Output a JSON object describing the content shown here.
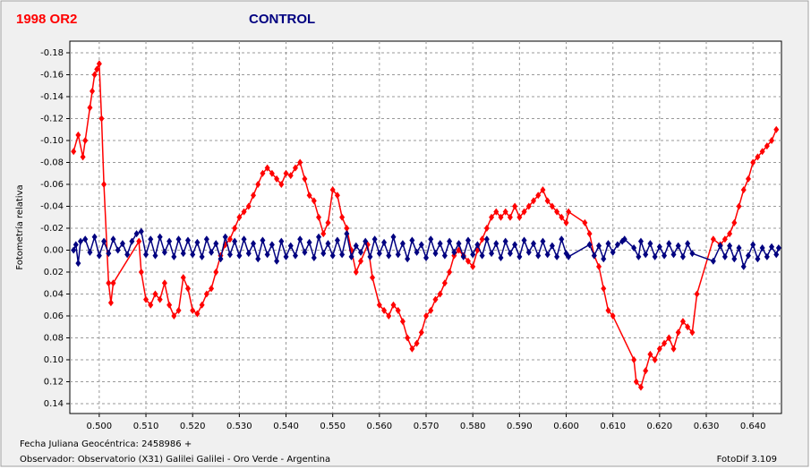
{
  "chart_data": {
    "type": "line",
    "y_label": "Fotometría relativa",
    "footer_left": [
      "Fecha Juliana Geocéntrica: 2458986 +",
      "Observador: Observatorio (X31) Galilei Galilei - Oro Verde - Argentina"
    ],
    "footer_right": "FotoDif 3.109",
    "invert_y": true,
    "grid": true,
    "xlim": [
      0.4937,
      0.6461
    ],
    "ylim": [
      -0.1906,
      0.149
    ],
    "xticks": [
      {
        "value": 0.5,
        "label": "0.500"
      },
      {
        "value": 0.51,
        "label": "0.510"
      },
      {
        "value": 0.52,
        "label": "0.520"
      },
      {
        "value": 0.53,
        "label": "0.530"
      },
      {
        "value": 0.54,
        "label": "0.540"
      },
      {
        "value": 0.55,
        "label": "0.550"
      },
      {
        "value": 0.56,
        "label": "0.560"
      },
      {
        "value": 0.57,
        "label": "0.570"
      },
      {
        "value": 0.58,
        "label": "0.580"
      },
      {
        "value": 0.59,
        "label": "0.590"
      },
      {
        "value": 0.6,
        "label": "0.600"
      },
      {
        "value": 0.61,
        "label": "0.610"
      },
      {
        "value": 0.62,
        "label": "0.620"
      },
      {
        "value": 0.63,
        "label": "0.630"
      },
      {
        "value": 0.64,
        "label": "0.640"
      }
    ],
    "yticks": [
      -0.18,
      -0.16,
      -0.14,
      -0.12,
      {
        "value": -0.1,
        "label": "-0.10"
      },
      -0.08,
      -0.06,
      -0.04,
      -0.02,
      {
        "value": 0,
        "label": "0.00"
      },
      0.02,
      0.04,
      0.06,
      0.08,
      {
        "value": 0.1,
        "label": "0.10"
      },
      0.12,
      0.14
    ],
    "series": [
      {
        "name": "1998 OR2",
        "color": "#ff0000",
        "x": [
          0.4945,
          0.4955,
          0.4965,
          0.497,
          0.498,
          0.4985,
          0.499,
          0.4995,
          0.5,
          0.5005,
          0.501,
          0.502,
          0.5025,
          0.503,
          0.5085,
          0.509,
          0.51,
          0.511,
          0.512,
          0.513,
          0.514,
          0.515,
          0.516,
          0.517,
          0.518,
          0.519,
          0.52,
          0.521,
          0.522,
          0.523,
          0.524,
          0.525,
          0.526,
          0.527,
          0.528,
          0.529,
          0.53,
          0.531,
          0.532,
          0.533,
          0.534,
          0.535,
          0.536,
          0.537,
          0.538,
          0.539,
          0.54,
          0.541,
          0.542,
          0.543,
          0.544,
          0.545,
          0.546,
          0.547,
          0.548,
          0.549,
          0.55,
          0.551,
          0.552,
          0.553,
          0.554,
          0.555,
          0.556,
          0.5575,
          0.5585,
          0.56,
          0.561,
          0.562,
          0.563,
          0.564,
          0.565,
          0.566,
          0.567,
          0.568,
          0.569,
          0.57,
          0.571,
          0.572,
          0.573,
          0.574,
          0.575,
          0.576,
          0.577,
          0.578,
          0.579,
          0.58,
          0.581,
          0.582,
          0.583,
          0.584,
          0.585,
          0.586,
          0.587,
          0.588,
          0.589,
          0.59,
          0.591,
          0.592,
          0.593,
          0.594,
          0.595,
          0.596,
          0.597,
          0.598,
          0.599,
          0.6,
          0.6005,
          0.604,
          0.605,
          0.606,
          0.607,
          0.608,
          0.609,
          0.61,
          0.6145,
          0.615,
          0.616,
          0.617,
          0.618,
          0.619,
          0.62,
          0.621,
          0.622,
          0.623,
          0.624,
          0.625,
          0.626,
          0.627,
          0.628,
          0.6315,
          0.633,
          0.634,
          0.635,
          0.636,
          0.637,
          0.638,
          0.639,
          0.64,
          0.641,
          0.642,
          0.643,
          0.644,
          0.645
        ],
        "values": [
          -0.09,
          -0.105,
          -0.085,
          -0.1,
          -0.13,
          -0.145,
          -0.16,
          -0.165,
          -0.17,
          -0.12,
          -0.06,
          0.03,
          0.048,
          0.03,
          -0.008,
          0.02,
          0.045,
          0.05,
          0.04,
          0.045,
          0.03,
          0.05,
          0.06,
          0.055,
          0.025,
          0.035,
          0.055,
          0.058,
          0.05,
          0.04,
          0.035,
          0.02,
          0.005,
          -0.005,
          -0.01,
          -0.02,
          -0.03,
          -0.035,
          -0.04,
          -0.05,
          -0.06,
          -0.07,
          -0.075,
          -0.07,
          -0.065,
          -0.06,
          -0.07,
          -0.068,
          -0.075,
          -0.08,
          -0.065,
          -0.05,
          -0.045,
          -0.03,
          -0.015,
          -0.025,
          -0.055,
          -0.05,
          -0.03,
          -0.02,
          0.0,
          0.02,
          0.01,
          -0.005,
          0.025,
          0.05,
          0.055,
          0.06,
          0.05,
          0.055,
          0.065,
          0.08,
          0.09,
          0.085,
          0.075,
          0.06,
          0.055,
          0.045,
          0.04,
          0.03,
          0.02,
          0.005,
          0.0,
          0.005,
          0.01,
          0.015,
          0.0,
          -0.01,
          -0.02,
          -0.03,
          -0.035,
          -0.03,
          -0.035,
          -0.03,
          -0.04,
          -0.03,
          -0.035,
          -0.04,
          -0.045,
          -0.05,
          -0.055,
          -0.045,
          -0.04,
          -0.035,
          -0.03,
          -0.025,
          -0.035,
          -0.025,
          -0.015,
          0.005,
          0.015,
          0.035,
          0.055,
          0.06,
          0.1,
          0.12,
          0.125,
          0.11,
          0.095,
          0.1,
          0.09,
          0.085,
          0.08,
          0.09,
          0.075,
          0.065,
          0.07,
          0.075,
          0.04,
          -0.01,
          -0.005,
          -0.01,
          -0.015,
          -0.025,
          -0.04,
          -0.055,
          -0.065,
          -0.08,
          -0.085,
          -0.09,
          -0.095,
          -0.1,
          -0.11
        ]
      },
      {
        "name": "CONTROL",
        "color": "#000080",
        "x": [
          0.4945,
          0.495,
          0.4955,
          0.496,
          0.497,
          0.498,
          0.499,
          0.5,
          0.501,
          0.502,
          0.503,
          0.504,
          0.505,
          0.506,
          0.507,
          0.508,
          0.509,
          0.51,
          0.511,
          0.512,
          0.513,
          0.514,
          0.515,
          0.516,
          0.517,
          0.518,
          0.519,
          0.52,
          0.521,
          0.522,
          0.523,
          0.524,
          0.525,
          0.526,
          0.527,
          0.528,
          0.529,
          0.53,
          0.531,
          0.532,
          0.533,
          0.534,
          0.535,
          0.536,
          0.537,
          0.538,
          0.539,
          0.54,
          0.541,
          0.542,
          0.543,
          0.544,
          0.545,
          0.546,
          0.547,
          0.548,
          0.549,
          0.55,
          0.551,
          0.552,
          0.553,
          0.554,
          0.555,
          0.556,
          0.557,
          0.558,
          0.559,
          0.56,
          0.561,
          0.562,
          0.563,
          0.564,
          0.565,
          0.566,
          0.567,
          0.568,
          0.569,
          0.57,
          0.571,
          0.572,
          0.573,
          0.574,
          0.575,
          0.576,
          0.577,
          0.578,
          0.579,
          0.58,
          0.581,
          0.582,
          0.583,
          0.584,
          0.585,
          0.586,
          0.587,
          0.588,
          0.589,
          0.59,
          0.591,
          0.592,
          0.593,
          0.594,
          0.595,
          0.596,
          0.597,
          0.598,
          0.599,
          0.6,
          0.6005,
          0.605,
          0.606,
          0.607,
          0.608,
          0.609,
          0.61,
          0.611,
          0.612,
          0.6125,
          0.6145,
          0.6155,
          0.616,
          0.617,
          0.618,
          0.619,
          0.62,
          0.621,
          0.622,
          0.623,
          0.624,
          0.625,
          0.626,
          0.627,
          0.6315,
          0.633,
          0.634,
          0.635,
          0.636,
          0.637,
          0.638,
          0.639,
          0.64,
          0.641,
          0.642,
          0.643,
          0.644,
          0.645,
          0.6455
        ],
        "values": [
          0.0,
          -0.005,
          0.012,
          -0.008,
          -0.01,
          0.002,
          -0.012,
          0.005,
          -0.008,
          0.003,
          -0.01,
          0.0,
          -0.006,
          0.004,
          -0.008,
          -0.015,
          -0.017,
          0.004,
          -0.01,
          0.005,
          -0.012,
          0.002,
          -0.008,
          0.006,
          -0.01,
          0.003,
          -0.009,
          0.004,
          -0.007,
          0.006,
          -0.01,
          0.002,
          -0.006,
          0.008,
          -0.012,
          0.004,
          -0.008,
          0.005,
          -0.01,
          0.003,
          -0.006,
          0.008,
          -0.009,
          0.004,
          -0.005,
          0.01,
          -0.008,
          0.006,
          -0.004,
          0.005,
          -0.01,
          0.002,
          -0.007,
          0.007,
          -0.012,
          0.003,
          -0.006,
          0.005,
          -0.009,
          0.004,
          -0.015,
          0.006,
          -0.004,
          0.002,
          -0.008,
          0.006,
          -0.01,
          0.003,
          -0.007,
          0.005,
          -0.012,
          0.004,
          -0.006,
          0.008,
          -0.009,
          0.002,
          -0.005,
          0.007,
          -0.01,
          0.003,
          -0.006,
          0.005,
          -0.008,
          0.002,
          -0.006,
          0.006,
          -0.009,
          0.004,
          -0.005,
          0.005,
          -0.01,
          0.003,
          -0.006,
          0.007,
          -0.008,
          0.003,
          -0.005,
          0.006,
          -0.009,
          0.002,
          -0.006,
          0.005,
          -0.008,
          0.004,
          -0.004,
          0.006,
          -0.01,
          0.003,
          0.006,
          -0.005,
          0.005,
          -0.004,
          0.008,
          -0.006,
          0.002,
          -0.005,
          -0.008,
          -0.01,
          -0.002,
          0.006,
          -0.008,
          0.004,
          -0.006,
          0.006,
          -0.003,
          0.005,
          -0.006,
          0.004,
          -0.004,
          0.006,
          -0.006,
          0.003,
          0.01,
          -0.004,
          0.006,
          -0.004,
          0.008,
          -0.002,
          0.015,
          0.005,
          -0.005,
          0.008,
          -0.002,
          0.006,
          -0.003,
          0.004,
          -0.002
        ]
      }
    ]
  }
}
